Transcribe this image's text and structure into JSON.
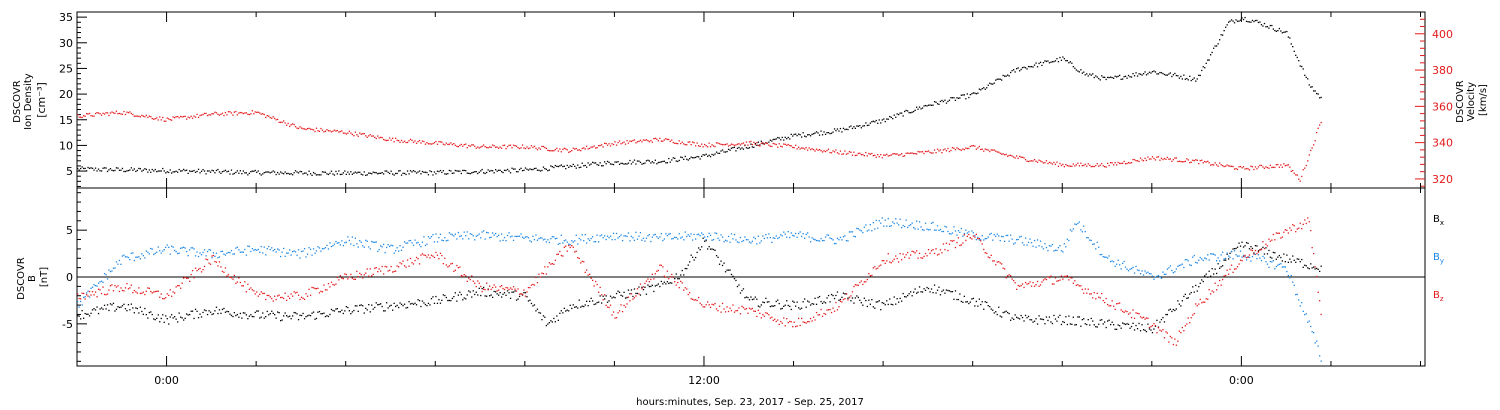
{
  "chart_data": [
    {
      "type": "scatter",
      "panel": "top",
      "y_axis_left": {
        "label_lines": [
          "DSCOVR",
          "Ion Density"
        ],
        "unit_label": "[cm⁻³]",
        "range": [
          1.7,
          36
        ],
        "tick_labels": [
          "5",
          "10",
          "15",
          "20",
          "25",
          "30",
          "35"
        ],
        "tick_values": [
          5,
          10,
          15,
          20,
          25,
          30,
          35
        ]
      },
      "y_axis_right": {
        "label_lines": [
          "DSCOVR",
          "Velocity"
        ],
        "unit_label": "[km/s]",
        "range": [
          315,
          412
        ],
        "tick_labels": [
          "320",
          "340",
          "360",
          "380",
          "400"
        ],
        "tick_values": [
          320,
          340,
          360,
          380,
          400
        ],
        "color": "#e41a1c"
      },
      "series": [
        {
          "color": "#000000",
          "axis": "left",
          "x": [
            -2,
            0,
            2,
            4,
            6,
            8,
            9,
            10,
            11,
            12,
            13,
            14,
            14.5,
            15,
            16,
            17,
            18,
            19,
            20,
            20.5,
            21,
            22,
            23,
            23.7,
            24,
            24.4,
            25,
            25.5,
            25.8
          ],
          "y": [
            5.5,
            5.2,
            4.8,
            4.7,
            4.8,
            5.3,
            6.0,
            6.8,
            7.0,
            8.0,
            10.0,
            12.0,
            12.5,
            13.0,
            15.0,
            18.0,
            20.0,
            25.0,
            27.0,
            24.0,
            23.0,
            24.5,
            23.0,
            34.0,
            35.0,
            34.0,
            32.0,
            22.0,
            19.0
          ]
        },
        {
          "color": "#e41a1c",
          "axis": "right",
          "x": [
            -2,
            -1,
            0,
            1,
            2,
            3,
            4,
            5,
            6,
            7,
            8,
            9,
            10,
            11,
            12,
            13,
            14,
            15,
            16,
            17,
            18,
            19,
            20,
            21,
            22,
            23,
            24,
            25,
            25.3,
            25.6,
            25.8
          ],
          "y": [
            355,
            357,
            353,
            356,
            357,
            348,
            346,
            342,
            340,
            338,
            338,
            336,
            340,
            342,
            339,
            340,
            338,
            335,
            333,
            335,
            338,
            332,
            328,
            328,
            332,
            330,
            326,
            328,
            320,
            340,
            355
          ]
        }
      ]
    },
    {
      "type": "scatter",
      "panel": "bottom",
      "y_axis_left": {
        "label_lines": [
          "DSCOVR",
          "B"
        ],
        "unit_label": "[nT]",
        "range": [
          -9.5,
          9.5
        ],
        "tick_labels": [
          "-5",
          "0",
          "5"
        ],
        "tick_values": [
          -5,
          0,
          5
        ]
      },
      "zero_line": true,
      "legend": [
        {
          "base": "B",
          "sub": "x",
          "color": "#000000"
        },
        {
          "base": "B",
          "sub": "y",
          "color": "#1e88e5"
        },
        {
          "base": "B",
          "sub": "z",
          "color": "#e41a1c"
        }
      ],
      "series": [
        {
          "name": "Bx",
          "color": "#000000",
          "x": [
            -2,
            -1,
            0,
            1,
            2,
            3,
            4,
            5,
            6,
            7,
            8,
            8.5,
            9,
            10,
            11,
            11.5,
            12,
            13,
            14,
            15,
            16,
            17,
            18,
            19,
            20,
            21,
            22,
            23,
            24,
            25,
            25.8
          ],
          "y": [
            -4,
            -3,
            -4.5,
            -3.5,
            -4,
            -4.2,
            -3.5,
            -3,
            -2.5,
            -1.5,
            -2,
            -5,
            -3,
            -2,
            -1,
            0.5,
            4,
            -2.5,
            -3,
            -2,
            -3,
            -1,
            -2.5,
            -4.5,
            -4.5,
            -5,
            -5.5,
            -1,
            3.5,
            2,
            1
          ]
        },
        {
          "name": "By",
          "color": "#1e88e5",
          "x": [
            -2,
            -1,
            0,
            1,
            2,
            3,
            4,
            5,
            6,
            7,
            8,
            9,
            10,
            11,
            12,
            13,
            14,
            15,
            16,
            17,
            18,
            19,
            20,
            20.3,
            21,
            22,
            23,
            24,
            25,
            25.5,
            25.8
          ],
          "y": [
            -3,
            2,
            3,
            2.5,
            3,
            2.5,
            4,
            3,
            4.2,
            4.5,
            4.2,
            4,
            4.5,
            4.2,
            4.5,
            4,
            4.5,
            4,
            6,
            5.5,
            4.5,
            4,
            3,
            6,
            2,
            0,
            2,
            2.5,
            1,
            -5,
            -9
          ]
        },
        {
          "name": "Bz",
          "color": "#e41a1c",
          "x": [
            -2,
            -1,
            0,
            1,
            2,
            3,
            4,
            5,
            6,
            7,
            8,
            9,
            10,
            11,
            12,
            13,
            14,
            15,
            16,
            17,
            18,
            19,
            20,
            21,
            22,
            22.5,
            23,
            24,
            25,
            25.5,
            25.8
          ],
          "y": [
            -2,
            -1,
            -2,
            2,
            -2,
            -2,
            0,
            1,
            2.5,
            -1,
            -1.5,
            3.5,
            -4,
            1,
            -3,
            -3.5,
            -5,
            -3,
            2,
            2.5,
            4.5,
            -1,
            0,
            -2.5,
            -5,
            -7,
            -3,
            2,
            5,
            6,
            -5
          ]
        }
      ]
    }
  ],
  "x_axis": {
    "range": [
      -2.0,
      28.1
    ],
    "major_ticks": [
      0,
      12,
      24
    ],
    "tick_labels": [
      "0:00",
      "12:00",
      "0:00"
    ],
    "minor_step": 2,
    "label": "hours:minutes, Sep. 23, 2017 - Sep. 25, 2017"
  }
}
